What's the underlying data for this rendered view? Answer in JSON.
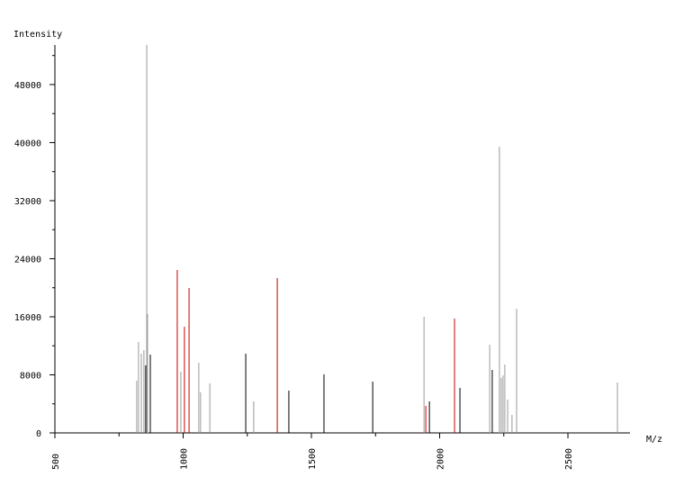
{
  "chart_data": {
    "type": "stem",
    "y_label": "Intensity",
    "x_label": "M/z",
    "xlim": [
      500,
      2742
    ],
    "ylim": [
      0,
      53450
    ],
    "xticks": [
      500,
      1000,
      1500,
      2000,
      2500
    ],
    "xminorticks": [
      750,
      1250,
      1750,
      2250
    ],
    "yticks": [
      0,
      8000,
      16000,
      24000,
      32000,
      40000,
      48000
    ],
    "yminorticks": [
      4000,
      12000,
      20000,
      28000,
      36000,
      44000,
      52000
    ],
    "series": [
      {
        "color": "#999999",
        "x": [
          819,
          826,
          837,
          847,
          858,
          861,
          991,
          1061,
          1068,
          1104,
          1275,
          1939,
          2195,
          2233,
          2240,
          2247,
          2254,
          2265,
          2282,
          2300,
          2693
        ],
        "values": [
          7190,
          12530,
          10910,
          11410,
          53450,
          16370,
          8430,
          9670,
          5580,
          6820,
          4340,
          16000,
          12150,
          39440,
          7570,
          7940,
          9430,
          4590,
          2480,
          17120,
          6950
        ]
      },
      {
        "color": "#000000",
        "x": [
          854,
          872,
          1244,
          1412,
          1549,
          1739,
          1960,
          2079,
          2205
        ],
        "values": [
          9300,
          10790,
          10910,
          5830,
          8060,
          7070,
          4340,
          6200,
          8680
        ]
      },
      {
        "color": "#cc0000",
        "x": [
          977,
          1005,
          1023,
          1367,
          1946,
          2058
        ],
        "values": [
          22450,
          14630,
          19970,
          21330,
          3720,
          15750
        ]
      }
    ]
  }
}
